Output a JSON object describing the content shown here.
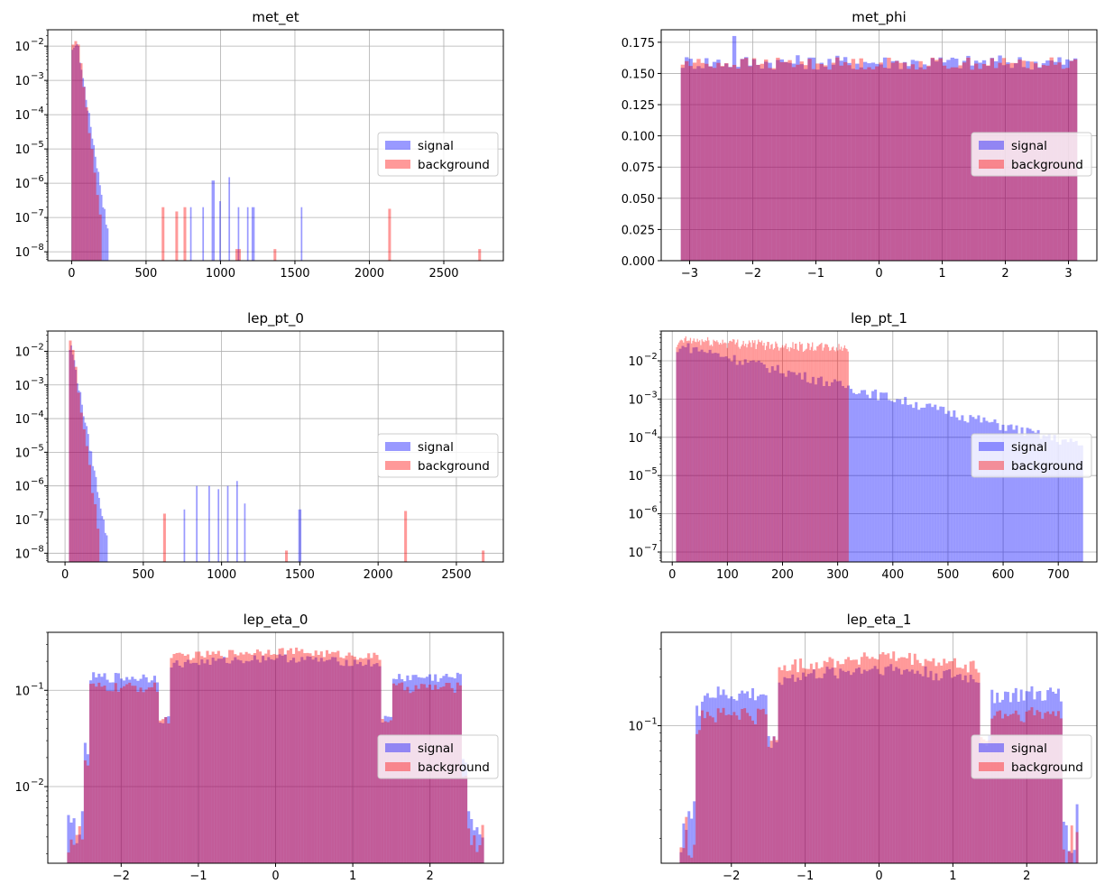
{
  "legend": {
    "signal_label": "signal",
    "background_label": "background",
    "position": "center-right"
  },
  "colors": {
    "signal": "#0000ff",
    "background": "#ff0000",
    "signal_alpha": 0.4,
    "background_alpha": 0.4,
    "grid": "#b0b0b0"
  },
  "chart_data": [
    {
      "type": "histogram",
      "title": "met_et",
      "yscale": "log",
      "xlim": [
        -160,
        2900
      ],
      "ylim": [
        5.5e-09,
        0.03
      ],
      "xticks": [
        0,
        500,
        1000,
        1500,
        2000,
        2500
      ],
      "yticks": [
        1e-08,
        1e-07,
        1e-06,
        1e-05,
        0.0001,
        0.001,
        0.01
      ],
      "grid": true,
      "series": [
        {
          "name": "signal",
          "pattern": "exp_tail",
          "x_range": [
            0,
            1550
          ],
          "peak_x": 40,
          "peak_value": 0.012,
          "decay_per_100": 0.45,
          "tail_spikes": [
            [
              800,
              2e-07
            ],
            [
              880,
              2e-07
            ],
            [
              950,
              1.2e-06
            ],
            [
              1000,
              3e-07
            ],
            [
              1060,
              1.5e-06
            ],
            [
              1120,
              2e-07
            ],
            [
              1180,
              2e-07
            ],
            [
              1220,
              2e-07
            ],
            [
              1550,
              2e-07
            ]
          ]
        },
        {
          "name": "background",
          "pattern": "exp_tail",
          "x_range": [
            0,
            2750
          ],
          "peak_x": 40,
          "peak_value": 0.016,
          "decay_per_100": 0.55,
          "tail_spikes": [
            [
              620,
              2e-07
            ],
            [
              700,
              1.5e-07
            ],
            [
              760,
              2e-07
            ],
            [
              1120,
              1.2e-08
            ],
            [
              1370,
              1.2e-08
            ],
            [
              2130,
              1.8e-07
            ],
            [
              2750,
              1.2e-08
            ]
          ]
        }
      ]
    },
    {
      "type": "histogram",
      "title": "met_phi",
      "yscale": "linear",
      "xlim": [
        -3.45,
        3.45
      ],
      "ylim": [
        0,
        0.185
      ],
      "xticks": [
        -3,
        -2,
        -1,
        0,
        1,
        2,
        3
      ],
      "yticks": [
        0.0,
        0.025,
        0.05,
        0.075,
        0.1,
        0.125,
        0.15,
        0.175
      ],
      "grid": true,
      "series": [
        {
          "name": "signal",
          "pattern": "flat",
          "x_range": [
            -3.14,
            3.14
          ],
          "level": 0.159,
          "noise": 0.006,
          "spikes": [
            [
              -2.3,
              0.18
            ]
          ]
        },
        {
          "name": "background",
          "pattern": "flat",
          "x_range": [
            -3.14,
            3.14
          ],
          "level": 0.158,
          "noise": 0.005
        }
      ]
    },
    {
      "type": "histogram",
      "title": "lep_pt_0",
      "yscale": "log",
      "xlim": [
        -110,
        2800
      ],
      "ylim": [
        5.5e-09,
        0.04
      ],
      "xticks": [
        0,
        500,
        1000,
        1500,
        2000,
        2500
      ],
      "yticks": [
        1e-08,
        1e-07,
        1e-06,
        1e-05,
        0.0001,
        0.001,
        0.01
      ],
      "grid": true,
      "series": [
        {
          "name": "signal",
          "pattern": "exp_tail",
          "x_range": [
            25,
            1510
          ],
          "peak_x": 40,
          "peak_value": 0.015,
          "decay_per_100": 0.42,
          "tail_spikes": [
            [
              760,
              2e-07
            ],
            [
              840,
              1e-06
            ],
            [
              920,
              1e-06
            ],
            [
              980,
              8e-07
            ],
            [
              1040,
              1e-06
            ],
            [
              1100,
              1.4e-06
            ],
            [
              1150,
              3e-07
            ],
            [
              1500,
              2e-07
            ]
          ]
        },
        {
          "name": "background",
          "pattern": "exp_tail",
          "x_range": [
            25,
            2680
          ],
          "peak_x": 40,
          "peak_value": 0.025,
          "decay_per_100": 0.55,
          "tail_spikes": [
            [
              640,
              1.5e-07
            ],
            [
              1420,
              1.2e-08
            ],
            [
              2180,
              1.8e-07
            ],
            [
              2680,
              1.2e-08
            ]
          ]
        }
      ]
    },
    {
      "type": "histogram",
      "title": "lep_pt_1",
      "yscale": "log",
      "xlim": [
        -20,
        770
      ],
      "ylim": [
        5.5e-08,
        0.06
      ],
      "xticks": [
        0,
        100,
        200,
        300,
        400,
        500,
        600,
        700
      ],
      "yticks": [
        1e-07,
        1e-06,
        1e-05,
        0.0001,
        0.001,
        0.01
      ],
      "grid": true,
      "series": [
        {
          "name": "signal",
          "pattern": "exp_tail",
          "x_range": [
            7,
            745
          ],
          "peak_x": 20,
          "peak_value": 0.025,
          "decay_per_100": 0.06,
          "tail_spikes": [
            [
              360,
              1e-06
            ],
            [
              420,
              2e-06
            ],
            [
              450,
              1e-06
            ],
            [
              500,
              2e-06
            ],
            [
              560,
              2e-06
            ],
            [
              600,
              2e-07
            ],
            [
              680,
              2e-06
            ],
            [
              720,
              1e-06
            ],
            [
              745,
              2e-07
            ]
          ]
        },
        {
          "name": "background",
          "pattern": "exp_tail",
          "x_range": [
            7,
            320
          ],
          "peak_x": 15,
          "peak_value": 0.035,
          "decay_per_100": 0.012
        }
      ]
    },
    {
      "type": "histogram",
      "title": "lep_eta_0",
      "yscale": "log",
      "xlim": [
        -2.95,
        2.95
      ],
      "ylim": [
        0.0016,
        0.4
      ],
      "xticks": [
        -2,
        -1,
        0,
        1,
        2
      ],
      "yticks": [
        0.01,
        0.1
      ],
      "grid": true,
      "series": [
        {
          "name": "signal",
          "pattern": "eta",
          "x_range": [
            -2.7,
            2.7
          ],
          "crack_value": 0.05,
          "outer_value": 0.14,
          "inner_value": 0.22,
          "edge_value": 0.004
        },
        {
          "name": "background",
          "pattern": "eta",
          "x_range": [
            -2.7,
            2.7
          ],
          "crack_value": 0.05,
          "outer_value": 0.11,
          "inner_value": 0.26,
          "edge_value": 0.003
        }
      ]
    },
    {
      "type": "histogram",
      "title": "lep_eta_1",
      "yscale": "log",
      "xlim": [
        -2.95,
        2.95
      ],
      "ylim": [
        0.014,
        0.38
      ],
      "xticks": [
        -2,
        -1,
        0,
        1,
        2
      ],
      "yticks": [
        0.1
      ],
      "grid": true,
      "series": [
        {
          "name": "signal",
          "pattern": "eta",
          "x_range": [
            -2.7,
            2.7
          ],
          "crack_value": 0.08,
          "outer_value": 0.16,
          "inner_value": 0.23,
          "edge_value": 0.025
        },
        {
          "name": "background",
          "pattern": "eta",
          "x_range": [
            -2.7,
            2.7
          ],
          "crack_value": 0.08,
          "outer_value": 0.12,
          "inner_value": 0.27,
          "edge_value": 0.02
        }
      ]
    }
  ]
}
